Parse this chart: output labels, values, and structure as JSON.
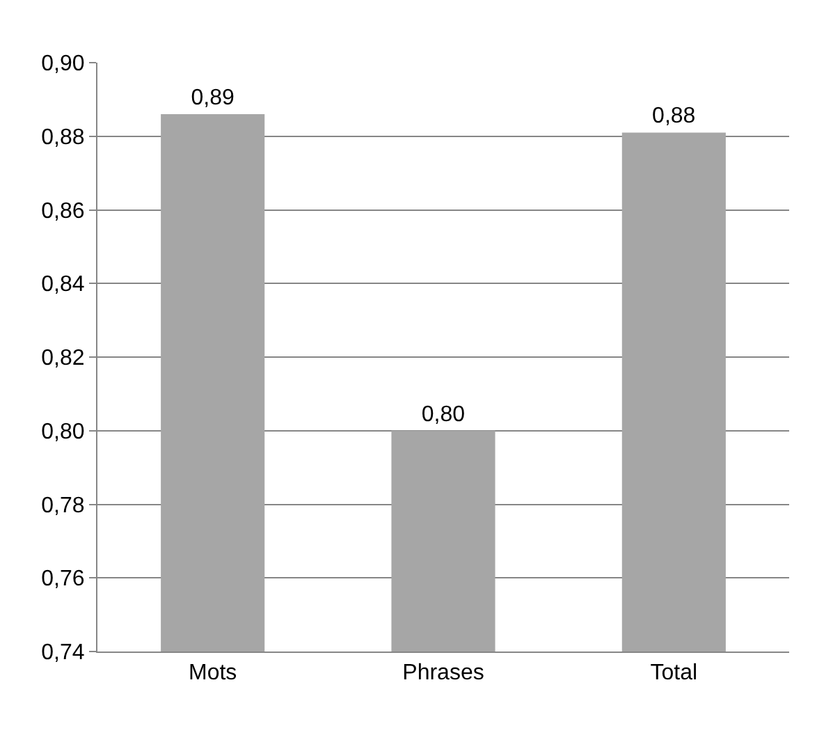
{
  "chart_data": {
    "type": "bar",
    "categories": [
      "Mots",
      "Phrases",
      "Total"
    ],
    "series": [
      {
        "color": "#a6a6a6",
        "values": [
          0.886,
          0.8,
          0.881
        ],
        "value_labels": [
          "0,89",
          "0,80",
          "0,88"
        ]
      }
    ],
    "ylim": [
      0.74,
      0.9
    ],
    "yticks": [
      {
        "value": 0.74,
        "label": "0,74"
      },
      {
        "value": 0.76,
        "label": "0,76"
      },
      {
        "value": 0.78,
        "label": "0,78"
      },
      {
        "value": 0.8,
        "label": "0,80"
      },
      {
        "value": 0.82,
        "label": "0,82"
      },
      {
        "value": 0.84,
        "label": "0,84"
      },
      {
        "value": 0.86,
        "label": "0,86"
      },
      {
        "value": 0.88,
        "label": "0,88"
      },
      {
        "value": 0.9,
        "label": "0,90"
      }
    ],
    "grid": "y",
    "legend": false
  }
}
